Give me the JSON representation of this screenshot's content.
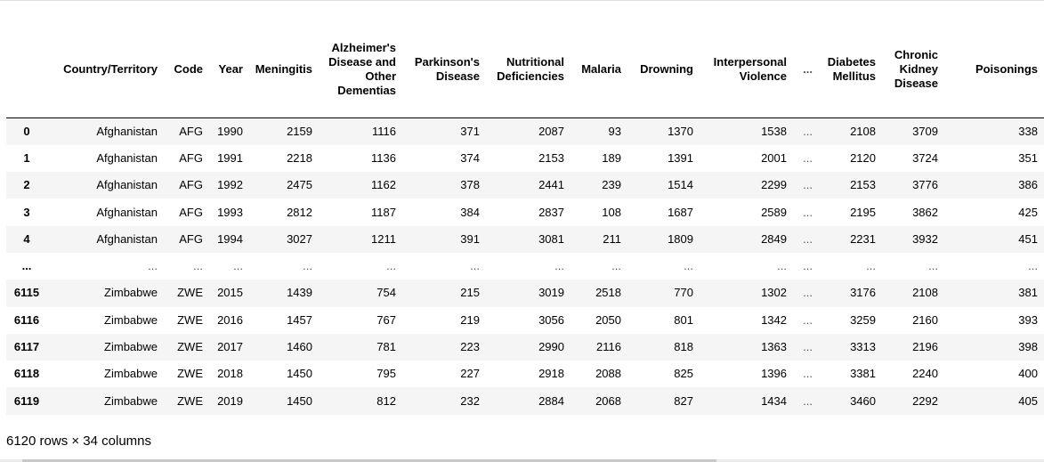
{
  "table": {
    "columns": [
      "",
      "Country/Territory",
      "Code",
      "Year",
      "Meningitis",
      "Alzheimer's Disease and Other Dementias",
      "Parkinson's Disease",
      "Nutritional Deficiencies",
      "Malaria",
      "Drowning",
      "Interpersonal Violence",
      "...",
      "Diabetes Mellitus",
      "Chronic Kidney Disease",
      "Poisonings"
    ],
    "rows": [
      {
        "index": "0",
        "cells": [
          "Afghanistan",
          "AFG",
          "1990",
          "2159",
          "1116",
          "371",
          "2087",
          "93",
          "1370",
          "1538",
          "...",
          "2108",
          "3709",
          "338"
        ]
      },
      {
        "index": "1",
        "cells": [
          "Afghanistan",
          "AFG",
          "1991",
          "2218",
          "1136",
          "374",
          "2153",
          "189",
          "1391",
          "2001",
          "...",
          "2120",
          "3724",
          "351"
        ]
      },
      {
        "index": "2",
        "cells": [
          "Afghanistan",
          "AFG",
          "1992",
          "2475",
          "1162",
          "378",
          "2441",
          "239",
          "1514",
          "2299",
          "...",
          "2153",
          "3776",
          "386"
        ]
      },
      {
        "index": "3",
        "cells": [
          "Afghanistan",
          "AFG",
          "1993",
          "2812",
          "1187",
          "384",
          "2837",
          "108",
          "1687",
          "2589",
          "...",
          "2195",
          "3862",
          "425"
        ]
      },
      {
        "index": "4",
        "cells": [
          "Afghanistan",
          "AFG",
          "1994",
          "3027",
          "1211",
          "391",
          "3081",
          "211",
          "1809",
          "2849",
          "...",
          "2231",
          "3932",
          "451"
        ]
      },
      {
        "index": "...",
        "cells": [
          "...",
          "...",
          "...",
          "...",
          "...",
          "...",
          "...",
          "...",
          "...",
          "...",
          "...",
          "...",
          "...",
          "..."
        ]
      },
      {
        "index": "6115",
        "cells": [
          "Zimbabwe",
          "ZWE",
          "2015",
          "1439",
          "754",
          "215",
          "3019",
          "2518",
          "770",
          "1302",
          "...",
          "3176",
          "2108",
          "381"
        ]
      },
      {
        "index": "6116",
        "cells": [
          "Zimbabwe",
          "ZWE",
          "2016",
          "1457",
          "767",
          "219",
          "3056",
          "2050",
          "801",
          "1342",
          "...",
          "3259",
          "2160",
          "393"
        ]
      },
      {
        "index": "6117",
        "cells": [
          "Zimbabwe",
          "ZWE",
          "2017",
          "1460",
          "781",
          "223",
          "2990",
          "2116",
          "818",
          "1363",
          "...",
          "3313",
          "2196",
          "398"
        ]
      },
      {
        "index": "6118",
        "cells": [
          "Zimbabwe",
          "ZWE",
          "2018",
          "1450",
          "795",
          "227",
          "2918",
          "2088",
          "825",
          "1396",
          "...",
          "3381",
          "2240",
          "400"
        ]
      },
      {
        "index": "6119",
        "cells": [
          "Zimbabwe",
          "ZWE",
          "2019",
          "1450",
          "812",
          "232",
          "2884",
          "2068",
          "827",
          "1434",
          "...",
          "3460",
          "2292",
          "405"
        ]
      }
    ]
  },
  "footer": {
    "summary": "6120 rows × 34 columns"
  }
}
